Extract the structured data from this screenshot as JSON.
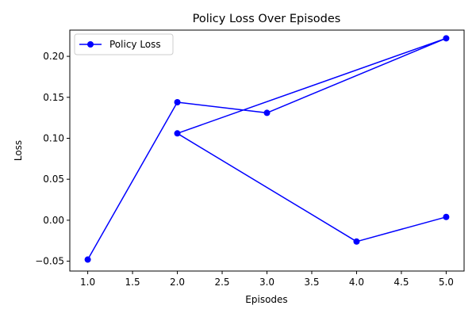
{
  "chart_data": {
    "type": "line",
    "title": "Policy Loss Over Episodes",
    "xlabel": "Episodes",
    "ylabel": "Loss",
    "xlim": [
      0.8,
      5.2
    ],
    "ylim": [
      -0.062,
      0.232
    ],
    "xticks": [
      1.0,
      1.5,
      2.0,
      2.5,
      3.0,
      3.5,
      4.0,
      4.5,
      5.0
    ],
    "xtick_labels": [
      "1.0",
      "1.5",
      "2.0",
      "2.5",
      "3.0",
      "3.5",
      "4.0",
      "4.5",
      "5.0"
    ],
    "yticks": [
      -0.05,
      0.0,
      0.05,
      0.1,
      0.15,
      0.2
    ],
    "ytick_labels": [
      "−0.05",
      "0.00",
      "0.05",
      "0.10",
      "0.15",
      "0.20"
    ],
    "grid": false,
    "legend_position": "upper-left",
    "series": [
      {
        "name": "Policy Loss",
        "color": "#0000ff",
        "marker": "circle",
        "x": [
          1,
          2,
          3,
          5,
          2,
          4,
          5
        ],
        "y": [
          -0.048,
          0.144,
          0.131,
          0.222,
          0.106,
          -0.026,
          0.004
        ]
      }
    ]
  }
}
